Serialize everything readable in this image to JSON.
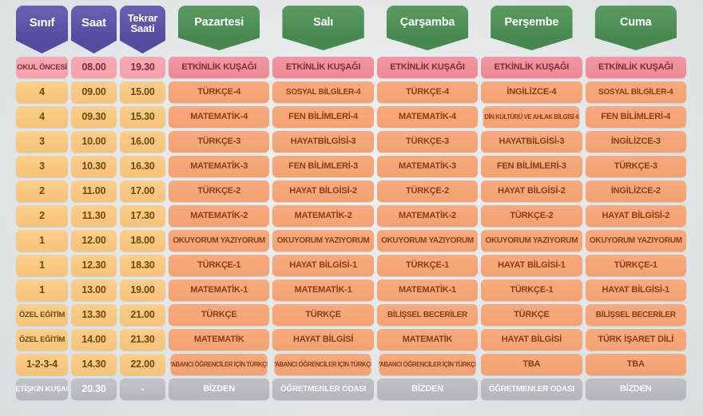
{
  "colors": {
    "purple": "#544c9f",
    "purple_hi": "#6a61b5",
    "green": "#47884e",
    "green_hi": "#5a9c60",
    "pink": "#ef8795",
    "pink_light": "#f5a0ab",
    "pink_text": "#7e2d3c",
    "amber": "#f8c278",
    "amber_text": "#6e4a08",
    "salmon": "#f4a171",
    "salmon_text": "#8c3d15",
    "gray": "#b5b5bc"
  },
  "chart_data": {
    "type": "table",
    "columns": [
      "Sınıf",
      "Saat",
      "Tekrar Saati",
      "Pazartesi",
      "Salı",
      "Çarşamba",
      "Perşembe",
      "Cuma"
    ],
    "row_types": [
      "pink",
      "orange",
      "orange",
      "orange",
      "orange",
      "orange",
      "orange",
      "orange",
      "orange",
      "orange",
      "orange",
      "orange",
      "orange",
      "gray"
    ],
    "rows": [
      [
        "OKUL ÖNCESİ",
        "08.00",
        "19.30",
        "ETKİNLİK KUŞAĞI",
        "ETKİNLİK KUŞAĞI",
        "ETKİNLİK KUŞAĞI",
        "ETKİNLİK KUŞAĞI",
        "ETKİNLİK KUŞAĞI"
      ],
      [
        "4",
        "09.00",
        "15.00",
        "TÜRKÇE-4",
        "SOSYAL BİLGİLER-4",
        "TÜRKÇE-4",
        "İNGİLİZCE-4",
        "SOSYAL BİLGİLER-4"
      ],
      [
        "4",
        "09.30",
        "15.30",
        "MATEMATİK-4",
        "FEN BİLİMLERİ-4",
        "MATEMATİK-4",
        "DİN KÜLTÜRÜ VE AHLAK BİLGİSİ 4",
        "FEN BİLİMLERİ-4"
      ],
      [
        "3",
        "10.00",
        "16.00",
        "TÜRKÇE-3",
        "HAYATBİLGİSİ-3",
        "TÜRKÇE-3",
        "HAYATBİLGİSİ-3",
        "İNGİLİZCE-3"
      ],
      [
        "3",
        "10.30",
        "16.30",
        "MATEMATİK-3",
        "FEN BİLİMLERİ-3",
        "MATEMATİK-3",
        "FEN BİLİMLERİ-3",
        "TÜRKÇE-3"
      ],
      [
        "2",
        "11.00",
        "17.00",
        "TÜRKÇE-2",
        "HAYAT BİLGİSİ-2",
        "TÜRKÇE-2",
        "HAYAT BİLGİSİ-2",
        "İNGİLİZCE-2"
      ],
      [
        "2",
        "11.30",
        "17.30",
        "MATEMATİK-2",
        "MATEMATİK-2",
        "MATEMATİK-2",
        "TÜRKÇE-2",
        "HAYAT BİLGİSİ-2"
      ],
      [
        "1",
        "12.00",
        "18.00",
        "OKUYORUM YAZIYORUM",
        "OKUYORUM YAZIYORUM",
        "OKUYORUM YAZIYORUM",
        "OKUYORUM YAZIYORUM",
        "OKUYORUM YAZIYORUM"
      ],
      [
        "1",
        "12.30",
        "18.30",
        "TÜRKÇE-1",
        "HAYAT BİLGİSİ-1",
        "TÜRKÇE-1",
        "HAYAT BİLGİSİ-1",
        "TÜRKÇE-1"
      ],
      [
        "1",
        "13.00",
        "19.00",
        "MATEMATİK-1",
        "MATEMATİK-1",
        "MATEMATİK-1",
        "TÜRKÇE-1",
        "HAYAT BİLGİSİ-1"
      ],
      [
        "ÖZEL EĞİTİM",
        "13.30",
        "21.00",
        "TÜRKÇE",
        "TÜRKÇE",
        "BİLİŞSEL BECERİLER",
        "TÜRKÇE",
        "BİLİŞSEL BECERİLER"
      ],
      [
        "ÖZEL EĞİTİM",
        "14.00",
        "21.30",
        "MATEMATİK",
        "HAYAT BİLGİSİ",
        "MATEMATİK",
        "HAYAT BİLGİSİ",
        "TÜRK İŞARET DİLİ"
      ],
      [
        "1-2-3-4",
        "14.30",
        "22.00",
        "YABANCI ÖĞRENCİLER İÇİN TÜRKÇE",
        "YABANCI ÖĞRENCİLER İÇİN TÜRKÇE",
        "YABANCI ÖĞRENCİLER İÇİN TÜRKÇE",
        "TBA",
        "TBA"
      ],
      [
        "YETİŞKİN KUŞAĞI",
        "20.30",
        "-",
        "BİZDEN",
        "ÖĞRETMENLER ODASI",
        "BİZDEN",
        "ÖĞRETMENLER ODASI",
        "BİZDEN"
      ]
    ]
  }
}
